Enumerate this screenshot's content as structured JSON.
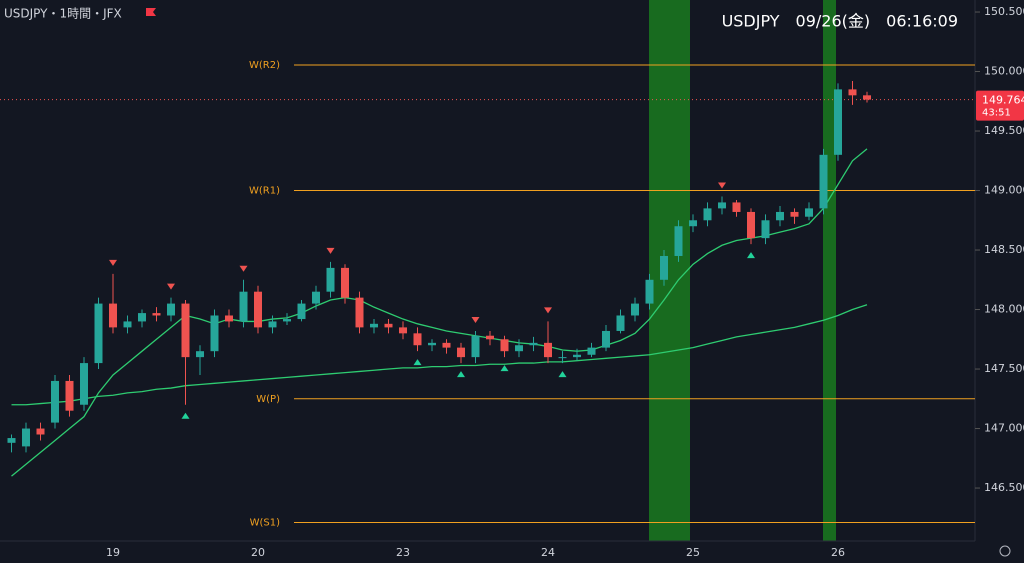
{
  "chart_data": {
    "type": "candlestick",
    "title": "USDJPY・1時間・JFX",
    "header": "USDJPY　09/26(金)　06:16:09",
    "categories": [
      null,
      null,
      null,
      null,
      null,
      null,
      null,
      "19",
      null,
      null,
      null,
      null,
      null,
      null,
      null,
      null,
      null,
      "20",
      null,
      null,
      null,
      null,
      null,
      null,
      null,
      null,
      null,
      "23",
      null,
      null,
      null,
      null,
      null,
      null,
      null,
      null,
      null,
      "24",
      null,
      null,
      null,
      null,
      null,
      null,
      null,
      null,
      null,
      "25",
      null,
      null,
      null,
      null,
      null,
      null,
      null,
      null,
      null,
      "26",
      null,
      null
    ],
    "open": [
      146.88,
      146.85,
      147.0,
      147.05,
      147.4,
      147.2,
      147.55,
      148.05,
      147.85,
      147.9,
      147.97,
      147.95,
      148.05,
      147.6,
      147.65,
      147.95,
      147.9,
      148.15,
      147.85,
      147.9,
      147.92,
      148.05,
      148.15,
      148.35,
      148.1,
      147.85,
      147.88,
      147.85,
      147.8,
      147.7,
      147.72,
      147.68,
      147.6,
      147.78,
      147.75,
      147.65,
      147.7,
      147.72,
      147.6,
      147.6,
      147.62,
      147.68,
      147.82,
      147.95,
      148.05,
      148.25,
      148.45,
      148.7,
      148.75,
      148.85,
      148.9,
      148.82,
      148.6,
      148.75,
      148.82,
      148.78,
      148.85,
      149.3,
      149.85,
      149.8
    ],
    "high": [
      146.95,
      147.05,
      147.05,
      147.45,
      147.45,
      147.6,
      148.1,
      148.3,
      147.95,
      148.0,
      148.02,
      148.1,
      148.08,
      147.7,
      148.0,
      148.0,
      148.25,
      148.2,
      147.95,
      147.97,
      148.08,
      148.2,
      148.4,
      148.38,
      148.15,
      147.92,
      147.92,
      147.9,
      147.85,
      147.75,
      147.75,
      147.72,
      147.82,
      147.82,
      147.78,
      147.75,
      147.77,
      147.9,
      147.65,
      147.67,
      147.72,
      147.87,
      148.0,
      148.1,
      148.3,
      148.5,
      148.75,
      148.8,
      148.9,
      148.95,
      148.92,
      148.85,
      148.8,
      148.87,
      148.85,
      148.9,
      149.35,
      149.9,
      149.92,
      149.83
    ],
    "low": [
      146.8,
      146.8,
      146.9,
      147.0,
      147.1,
      147.15,
      147.5,
      147.8,
      147.8,
      147.85,
      147.9,
      147.9,
      147.2,
      147.45,
      147.6,
      147.85,
      147.85,
      147.8,
      147.8,
      147.87,
      147.9,
      148.0,
      148.1,
      148.05,
      147.8,
      147.8,
      147.8,
      147.75,
      147.65,
      147.65,
      147.63,
      147.55,
      147.55,
      147.7,
      147.6,
      147.6,
      147.65,
      147.55,
      147.55,
      147.57,
      147.6,
      147.65,
      147.8,
      147.9,
      148.0,
      148.2,
      148.4,
      148.65,
      148.7,
      148.8,
      148.78,
      148.55,
      148.55,
      148.7,
      148.72,
      148.75,
      148.8,
      149.25,
      149.72,
      149.74
    ],
    "close": [
      146.92,
      147.0,
      146.95,
      147.4,
      147.15,
      147.55,
      148.05,
      147.85,
      147.9,
      147.97,
      147.95,
      148.05,
      147.6,
      147.65,
      147.95,
      147.9,
      148.15,
      147.85,
      147.9,
      147.92,
      148.05,
      148.15,
      148.35,
      148.1,
      147.85,
      147.88,
      147.85,
      147.8,
      147.7,
      147.72,
      147.68,
      147.6,
      147.78,
      147.75,
      147.65,
      147.7,
      147.72,
      147.6,
      147.6,
      147.62,
      147.68,
      147.82,
      147.95,
      148.05,
      148.25,
      148.45,
      148.7,
      148.75,
      148.85,
      148.9,
      148.82,
      148.6,
      148.75,
      148.82,
      148.78,
      148.85,
      149.3,
      149.85,
      149.8,
      149.764
    ],
    "up_color": "#26a69a",
    "down_color": "#ef5350",
    "lines": [
      {
        "color": "#2ecc71",
        "values": [
          146.6,
          146.7,
          146.8,
          146.9,
          147.0,
          147.1,
          147.3,
          147.45,
          147.55,
          147.65,
          147.75,
          147.85,
          147.95,
          147.92,
          147.88,
          147.92,
          147.9,
          147.9,
          147.92,
          147.93,
          147.97,
          148.03,
          148.08,
          148.1,
          148.08,
          148.02,
          147.97,
          147.92,
          147.88,
          147.85,
          147.82,
          147.8,
          147.78,
          147.76,
          147.74,
          147.72,
          147.71,
          147.69,
          147.66,
          147.65,
          147.66,
          147.7,
          147.74,
          147.8,
          147.92,
          148.08,
          148.25,
          148.38,
          148.47,
          148.54,
          148.58,
          148.6,
          148.62,
          148.65,
          148.68,
          148.72,
          148.85,
          149.05,
          149.25,
          149.35
        ]
      },
      {
        "color": "#2ecc71",
        "values": [
          147.2,
          147.2,
          147.21,
          147.22,
          147.23,
          147.25,
          147.27,
          147.28,
          147.3,
          147.31,
          147.33,
          147.34,
          147.36,
          147.37,
          147.38,
          147.39,
          147.4,
          147.41,
          147.42,
          147.43,
          147.44,
          147.45,
          147.46,
          147.47,
          147.48,
          147.49,
          147.5,
          147.51,
          147.51,
          147.52,
          147.52,
          147.53,
          147.53,
          147.54,
          147.54,
          147.55,
          147.55,
          147.56,
          147.56,
          147.57,
          147.58,
          147.59,
          147.6,
          147.61,
          147.62,
          147.64,
          147.66,
          147.68,
          147.71,
          147.74,
          147.77,
          147.79,
          147.81,
          147.83,
          147.85,
          147.88,
          147.91,
          147.95,
          148.0,
          148.04
        ]
      }
    ],
    "sell_signals": [
      7,
      11,
      16,
      22,
      32,
      37,
      49
    ],
    "buy_signals": [
      12,
      28,
      31,
      34,
      38,
      51
    ],
    "levels": [
      {
        "name": "W(R2)",
        "value": 150.055
      },
      {
        "name": "W(R1)",
        "value": 149.0
      },
      {
        "name": "W(P)",
        "value": 147.25
      },
      {
        "name": "W(S1)",
        "value": 146.21
      }
    ],
    "level_color": "#f0a020",
    "last_price": 149.764,
    "countdown": "43:51",
    "ylim": [
      146.055,
      150.601
    ],
    "yticks": [
      {
        "value": 146.5,
        "label": "146.500"
      },
      {
        "value": 147,
        "label": "147.000"
      },
      {
        "value": 147.5,
        "label": "147.500"
      },
      {
        "value": 148,
        "label": "148.000"
      },
      {
        "value": 148.5,
        "label": "148.500"
      },
      {
        "value": 149,
        "label": "149.000"
      },
      {
        "value": 149.5,
        "label": "149.500"
      },
      {
        "value": 150,
        "label": "150.000"
      },
      {
        "value": 150.5,
        "label": "150.500"
      }
    ]
  }
}
